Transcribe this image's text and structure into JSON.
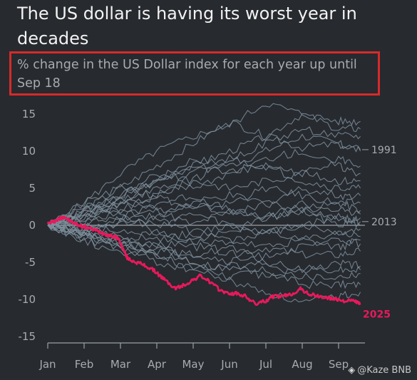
{
  "header": {
    "title": "The US dollar is having its worst year in decades",
    "subtitle": "% change in the US Dollar index for each year up until Sep 18"
  },
  "watermark": {
    "text": "@Kaze BNB",
    "icon": "diamond-logo-icon"
  },
  "colors": {
    "background": "#272a2f",
    "history": "#7e8f9c",
    "highlight": "#e8195b",
    "text": "#a8abb0",
    "annotation_border": "#d62a2a"
  },
  "chart_data": {
    "type": "line",
    "title": "The US dollar is having its worst year in decades",
    "subtitle": "% change in the US Dollar index for each year up until Sep 18",
    "xlabel": "",
    "ylabel": "",
    "x_ticks": [
      "Jan",
      "Feb",
      "Mar",
      "Apr",
      "May",
      "Jun",
      "Jul",
      "Aug",
      "Sep"
    ],
    "x_range": [
      0,
      8.65
    ],
    "ylim": [
      -15,
      17
    ],
    "y_ticks": [
      15,
      10,
      5,
      0,
      -5,
      -10,
      -15
    ],
    "zero_line": true,
    "grid": false,
    "x_note": "x values are months since Jan 1 (0 = Jan, 8 = Sep)",
    "highlight_series": {
      "name": "2025",
      "x": [
        0,
        0.15,
        0.3,
        0.45,
        0.6,
        0.8,
        1.0,
        1.2,
        1.4,
        1.6,
        1.8,
        1.95,
        2.05,
        2.2,
        2.45,
        2.7,
        2.95,
        3.2,
        3.5,
        3.7,
        3.95,
        4.2,
        4.45,
        4.7,
        4.95,
        5.2,
        5.45,
        5.7,
        5.95,
        6.2,
        6.45,
        6.7,
        6.95,
        7.2,
        7.45,
        7.7,
        7.95,
        8.2,
        8.45,
        8.6
      ],
      "y": [
        0.2,
        0.5,
        0.8,
        1.2,
        0.6,
        0.1,
        -0.2,
        -0.5,
        -0.8,
        -1.2,
        -1.5,
        -1.8,
        -3.0,
        -4.5,
        -5.0,
        -5.5,
        -6.2,
        -7.3,
        -8.5,
        -8.2,
        -7.5,
        -6.8,
        -7.6,
        -8.6,
        -9.2,
        -9.2,
        -9.6,
        -10.6,
        -10.3,
        -9.6,
        -9.6,
        -9.3,
        -8.6,
        -9.3,
        -9.6,
        -9.8,
        -10.0,
        -10.2,
        -10.2,
        -10.7
      ]
    },
    "labeled_series": [
      {
        "name": "1991",
        "label_y": 10.2
      },
      {
        "name": "2013",
        "label_y": 0.5
      }
    ],
    "series": [
      {
        "name": "1991",
        "x": [
          0,
          1,
          2,
          3,
          4,
          5,
          6,
          7,
          8,
          8.6
        ],
        "y": [
          0,
          1.5,
          4,
          6,
          8,
          10,
          12,
          10.5,
          11,
          10.2
        ]
      },
      {
        "name": "2013",
        "x": [
          0,
          1,
          2,
          3,
          4,
          5,
          6,
          7,
          8,
          8.6
        ],
        "y": [
          0,
          2,
          3.5,
          2,
          3,
          1.5,
          3,
          2,
          1.2,
          0.5
        ]
      },
      {
        "name": "",
        "x": [
          0,
          1,
          2,
          3,
          4,
          5,
          6,
          7,
          8,
          8.6
        ],
        "y": [
          0,
          3,
          7,
          10,
          12,
          13.5,
          16.5,
          15,
          14,
          14
        ]
      },
      {
        "name": "",
        "x": [
          0,
          1,
          2,
          3,
          4,
          5,
          6,
          7,
          8,
          8.6
        ],
        "y": [
          0,
          2,
          5,
          8,
          11,
          14,
          12,
          15,
          13,
          13
        ]
      },
      {
        "name": "",
        "x": [
          0,
          1,
          2,
          3,
          4,
          5,
          6,
          7,
          8,
          8.6
        ],
        "y": [
          0,
          2.5,
          4,
          6,
          9,
          8,
          10,
          12,
          11,
          10
        ]
      },
      {
        "name": "",
        "x": [
          0,
          1,
          2,
          3,
          4,
          5,
          6,
          7,
          8,
          8.6
        ],
        "y": [
          0,
          1,
          3,
          5,
          5,
          7,
          8,
          7,
          9,
          8
        ]
      },
      {
        "name": "",
        "x": [
          0,
          1,
          2,
          3,
          4,
          5,
          6,
          7,
          8,
          8.6
        ],
        "y": [
          0,
          1.5,
          2,
          4,
          6,
          5,
          6,
          7,
          6,
          6
        ]
      },
      {
        "name": "",
        "x": [
          0,
          1,
          2,
          3,
          4,
          5,
          6,
          7,
          8,
          8.6
        ],
        "y": [
          0,
          0.5,
          2,
          1,
          3,
          4,
          3,
          5,
          4,
          4
        ]
      },
      {
        "name": "",
        "x": [
          0,
          1,
          2,
          3,
          4,
          5,
          6,
          7,
          8,
          8.6
        ],
        "y": [
          0,
          -1,
          1,
          2,
          0,
          2,
          1,
          2,
          3,
          2
        ]
      },
      {
        "name": "",
        "x": [
          0,
          1,
          2,
          3,
          4,
          5,
          6,
          7,
          8,
          8.6
        ],
        "y": [
          0,
          0,
          -1,
          -2,
          -1,
          0,
          -1,
          0,
          -1,
          -0.5
        ]
      },
      {
        "name": "",
        "x": [
          0,
          1,
          2,
          3,
          4,
          5,
          6,
          7,
          8,
          8.6
        ],
        "y": [
          0,
          -1,
          -2,
          -1,
          -3,
          -2,
          -1,
          -2,
          -3,
          -2
        ]
      },
      {
        "name": "",
        "x": [
          0,
          1,
          2,
          3,
          4,
          5,
          6,
          7,
          8,
          8.6
        ],
        "y": [
          0,
          -0.5,
          -1.5,
          -3,
          -2,
          -4,
          -3,
          -4,
          -4,
          -3.5
        ]
      },
      {
        "name": "",
        "x": [
          0,
          1,
          2,
          3,
          4,
          5,
          6,
          7,
          8,
          8.6
        ],
        "y": [
          0,
          -1.5,
          -2,
          -3.5,
          -4,
          -3,
          -5,
          -6,
          -5,
          -5.5
        ]
      },
      {
        "name": "",
        "x": [
          0,
          1,
          2,
          3,
          4,
          5,
          6,
          7,
          8,
          8.6
        ],
        "y": [
          0,
          -2,
          -3,
          -2.5,
          -5,
          -6,
          -5,
          -7,
          -7,
          -6.5
        ]
      },
      {
        "name": "",
        "x": [
          0,
          1,
          2,
          3,
          4,
          5,
          6,
          7,
          8,
          8.6
        ],
        "y": [
          0,
          -1,
          -2.5,
          -4,
          -5,
          -7,
          -6,
          -8,
          -8,
          -8
        ]
      },
      {
        "name": "",
        "x": [
          0,
          1,
          2,
          3,
          4,
          5,
          6,
          7,
          8,
          8.6
        ],
        "y": [
          0,
          -1.5,
          -3,
          -5,
          -6,
          -7.5,
          -9,
          -10.5,
          -9.5,
          -9
        ]
      },
      {
        "name": "",
        "x": [
          0,
          1,
          2,
          3,
          4,
          5,
          6,
          7,
          8,
          8.6
        ],
        "y": [
          0,
          1,
          2,
          -1,
          -2,
          -1,
          1,
          2,
          0,
          1
        ]
      },
      {
        "name": "",
        "x": [
          0,
          1,
          2,
          3,
          4,
          5,
          6,
          7,
          8,
          8.6
        ],
        "y": [
          0,
          2,
          3,
          4,
          2,
          3,
          5,
          4,
          3,
          3
        ]
      },
      {
        "name": "",
        "x": [
          0,
          1,
          2,
          3,
          4,
          5,
          6,
          7,
          8,
          8.6
        ],
        "y": [
          0,
          3,
          5,
          4,
          7,
          9,
          8,
          6,
          5,
          5
        ]
      },
      {
        "name": "",
        "x": [
          0,
          1,
          2,
          3,
          4,
          5,
          6,
          7,
          8,
          8.6
        ],
        "y": [
          0,
          1,
          4,
          7,
          6,
          9,
          11,
          13,
          12,
          12
        ]
      },
      {
        "name": "",
        "x": [
          0,
          1,
          2,
          3,
          4,
          5,
          6,
          7,
          8,
          8.6
        ],
        "y": [
          0,
          -1,
          0,
          1,
          -1,
          -2,
          -3,
          -2,
          -1,
          -1.5
        ]
      },
      {
        "name": "",
        "x": [
          0,
          1,
          2,
          3,
          4,
          5,
          6,
          7,
          8,
          8.6
        ],
        "y": [
          0,
          0.5,
          1,
          3,
          4,
          2,
          1,
          3,
          2,
          1.5
        ]
      },
      {
        "name": "",
        "x": [
          0,
          1,
          2,
          3,
          4,
          5,
          6,
          7,
          8,
          8.6
        ],
        "y": [
          0,
          -2,
          -4,
          -3,
          -4,
          -5,
          -4,
          -3,
          -2,
          -2.5
        ]
      },
      {
        "name": "",
        "x": [
          0,
          1,
          2,
          3,
          4,
          5,
          6,
          7,
          8,
          8.6
        ],
        "y": [
          0,
          1.5,
          3,
          6,
          8,
          7,
          9,
          10,
          8,
          7
        ]
      },
      {
        "name": "",
        "x": [
          0,
          1,
          2,
          3,
          4,
          5,
          6,
          7,
          8,
          8.6
        ],
        "y": [
          0,
          -0.5,
          0.5,
          0,
          1.5,
          0,
          -1,
          0,
          1,
          0
        ]
      },
      {
        "name": "",
        "x": [
          0,
          1,
          2,
          3,
          4,
          5,
          6,
          7,
          8,
          8.6
        ],
        "y": [
          0,
          -1,
          -2,
          -4,
          -6,
          -5,
          -7,
          -6,
          -6,
          -6
        ]
      }
    ]
  }
}
